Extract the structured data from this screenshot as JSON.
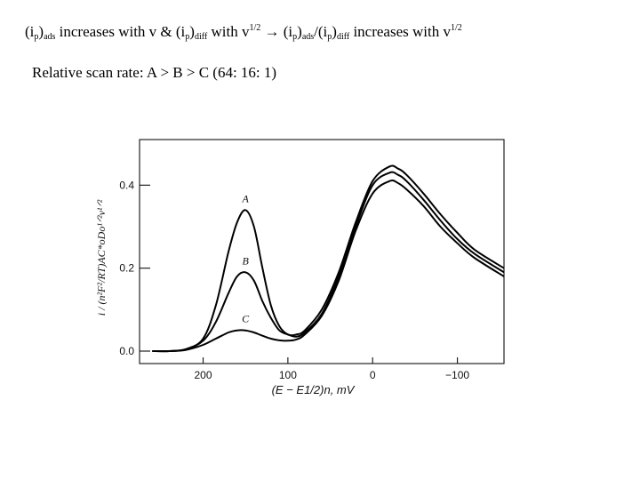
{
  "slide": {
    "headline_parts": [
      {
        "t": "(i",
        "k": "n"
      },
      {
        "t": "p",
        "k": "sub"
      },
      {
        "t": ")",
        "k": "n"
      },
      {
        "t": "ads",
        "k": "sub"
      },
      {
        "t": " increases with v & (i",
        "k": "n"
      },
      {
        "t": "p",
        "k": "sub"
      },
      {
        "t": ")",
        "k": "n"
      },
      {
        "t": "diff",
        "k": "sub"
      },
      {
        "t": " with v",
        "k": "n"
      },
      {
        "t": "1/2",
        "k": "sup"
      },
      {
        "t": " → (i",
        "k": "n"
      },
      {
        "t": "p",
        "k": "sub"
      },
      {
        "t": ")",
        "k": "n"
      },
      {
        "t": "ads",
        "k": "sub"
      },
      {
        "t": "/(i",
        "k": "n"
      },
      {
        "t": "p",
        "k": "sub"
      },
      {
        "t": ")",
        "k": "n"
      },
      {
        "t": "diff",
        "k": "sub"
      },
      {
        "t": " increases with v",
        "k": "n"
      },
      {
        "t": "1/2",
        "k": "sup"
      }
    ],
    "subline": "Relative scan rate: A > B > C (64: 16: 1)"
  },
  "chart_data": {
    "type": "line",
    "title": "",
    "xlabel": "(E − E1/2)n, mV",
    "ylabel": "i / (n²F²/RT)AC*oDo¹ᐟ²v¹ᐟ²",
    "xlim": [
      275,
      -155
    ],
    "ylim": [
      -0.03,
      0.51
    ],
    "x_reversed": true,
    "xticks": [
      200,
      100,
      0,
      -100
    ],
    "xtick_labels": [
      "200",
      "100",
      "0",
      "−100"
    ],
    "yticks": [
      0.0,
      0.2,
      0.4
    ],
    "ytick_labels": [
      "0.0",
      "0.2",
      "0.4"
    ],
    "grid": false,
    "legend": "none",
    "line_color": "#000000",
    "series": [
      {
        "name": "A",
        "x": [
          260,
          240,
          220,
          200,
          185,
          170,
          160,
          150,
          140,
          130,
          120,
          110,
          100,
          90,
          80,
          60,
          40,
          20,
          0,
          -20,
          -30,
          -40,
          -60,
          -80,
          -100,
          -120,
          -155
        ],
        "values": [
          0.0,
          0.0,
          0.005,
          0.03,
          0.11,
          0.24,
          0.31,
          0.34,
          0.3,
          0.2,
          0.11,
          0.06,
          0.04,
          0.04,
          0.05,
          0.1,
          0.19,
          0.31,
          0.41,
          0.445,
          0.44,
          0.425,
          0.38,
          0.33,
          0.285,
          0.245,
          0.2
        ]
      },
      {
        "name": "B",
        "x": [
          260,
          240,
          220,
          200,
          185,
          170,
          160,
          150,
          140,
          130,
          120,
          110,
          100,
          90,
          80,
          60,
          40,
          20,
          0,
          -20,
          -30,
          -40,
          -60,
          -80,
          -100,
          -120,
          -155
        ],
        "values": [
          0.0,
          0.0,
          0.004,
          0.025,
          0.07,
          0.14,
          0.18,
          0.19,
          0.17,
          0.12,
          0.08,
          0.05,
          0.04,
          0.035,
          0.045,
          0.09,
          0.18,
          0.3,
          0.4,
          0.43,
          0.425,
          0.41,
          0.365,
          0.315,
          0.27,
          0.235,
          0.19
        ]
      },
      {
        "name": "C",
        "x": [
          260,
          240,
          220,
          200,
          185,
          170,
          160,
          150,
          140,
          130,
          120,
          110,
          100,
          90,
          80,
          60,
          40,
          20,
          0,
          -20,
          -30,
          -40,
          -60,
          -80,
          -100,
          -120,
          -155
        ],
        "values": [
          0.0,
          0.0,
          0.003,
          0.015,
          0.03,
          0.045,
          0.05,
          0.05,
          0.045,
          0.037,
          0.03,
          0.026,
          0.025,
          0.028,
          0.04,
          0.085,
          0.17,
          0.29,
          0.38,
          0.41,
          0.405,
          0.39,
          0.35,
          0.3,
          0.26,
          0.225,
          0.18
        ]
      }
    ],
    "annotations": [
      "A",
      "B",
      "C"
    ]
  }
}
